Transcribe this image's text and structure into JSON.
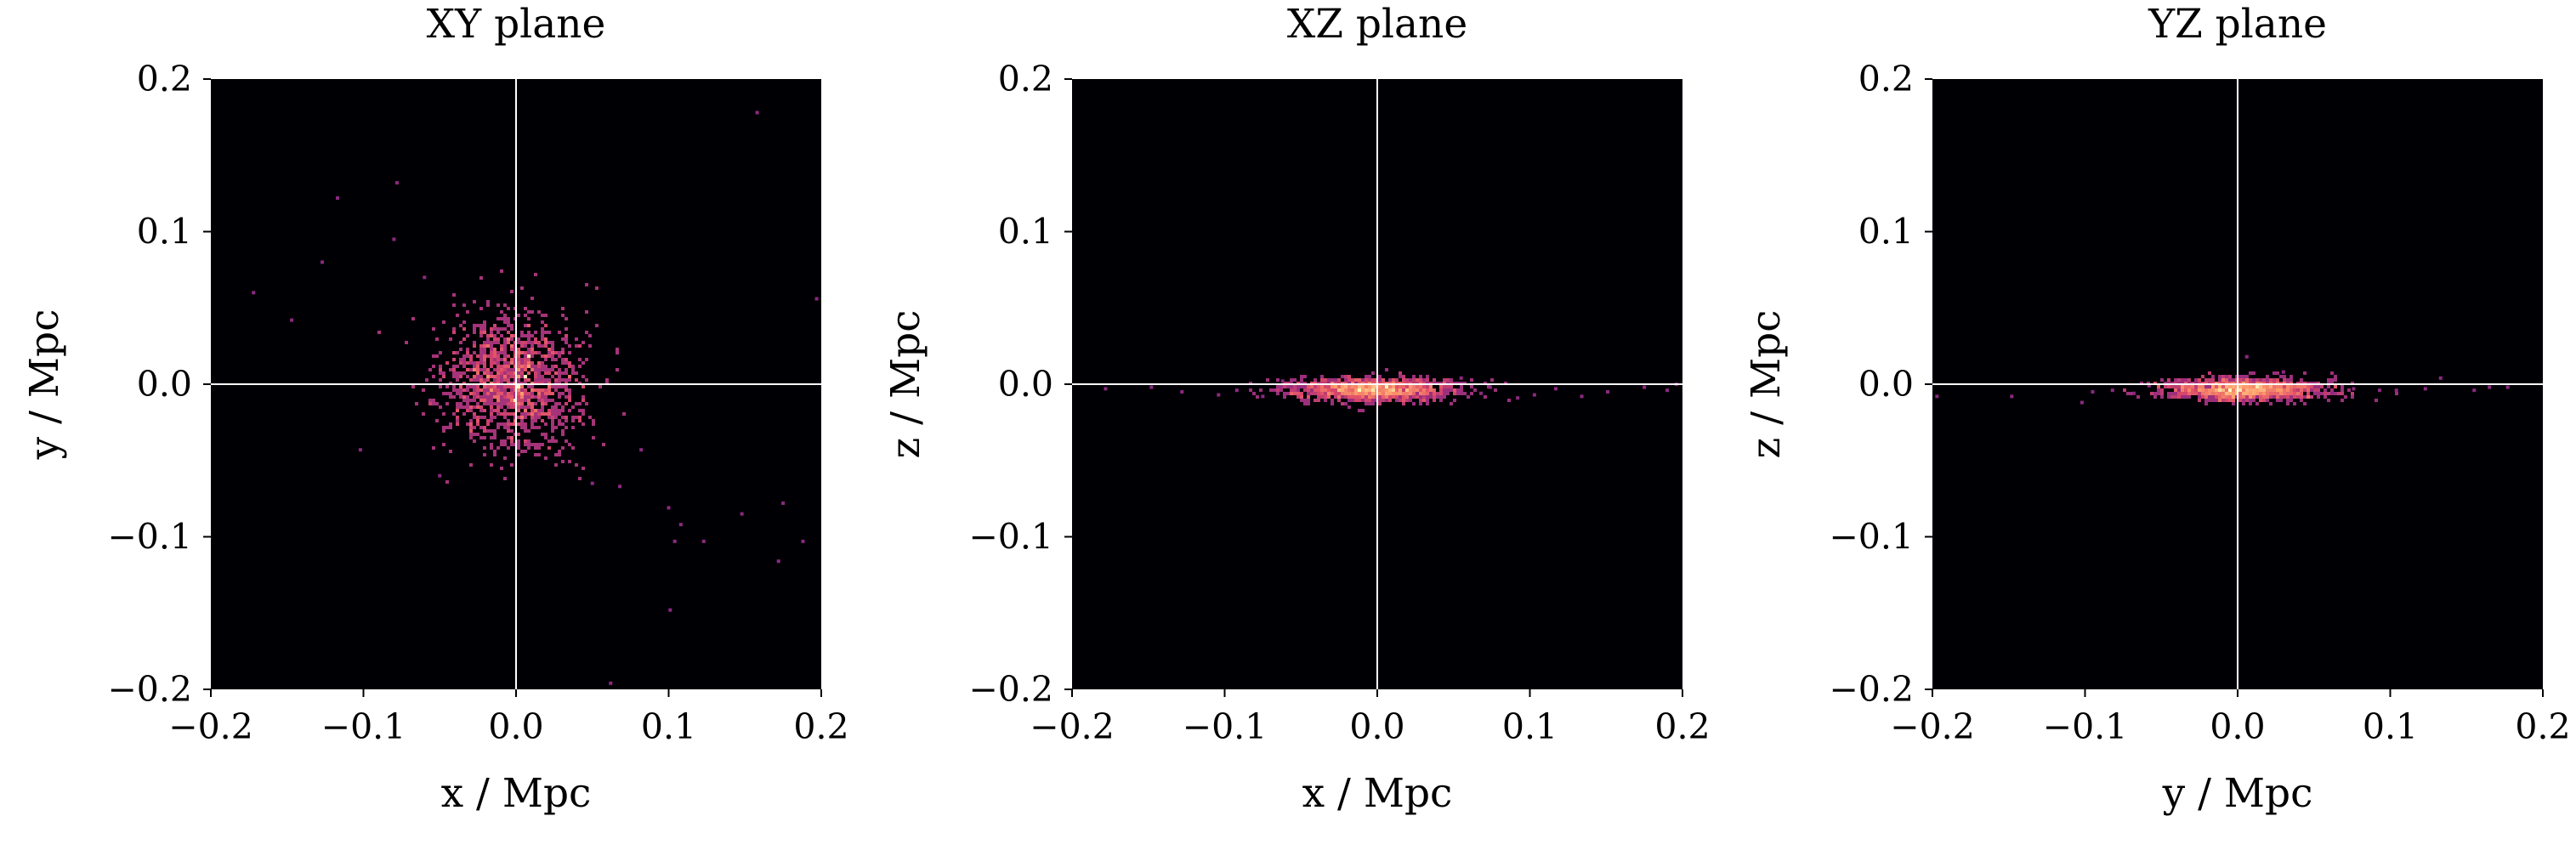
{
  "colors": {
    "background": "#000004",
    "crosshair": "#ffffff",
    "colormap": [
      "#3b0f70",
      "#8c2981",
      "#de4968",
      "#fe9f6d",
      "#fcfdbf"
    ]
  },
  "colormap_name": "magma",
  "chart_data": [
    {
      "type": "heatmap",
      "title": "XY plane",
      "xlabel": "x / Mpc",
      "ylabel": "y / Mpc",
      "xlim": [
        -0.2,
        0.2
      ],
      "ylim": [
        -0.2,
        0.2
      ],
      "xticks": [
        "−0.2",
        "−0.1",
        "0.0",
        "0.1",
        "0.2"
      ],
      "yticks": [
        "−0.2",
        "−0.1",
        "0.0",
        "0.1",
        "0.2"
      ],
      "grid": false,
      "crosshair_at": [
        0,
        0
      ],
      "core": {
        "center": [
          -0.003,
          0.002
        ],
        "sigma": [
          0.022,
          0.022
        ],
        "count": 1400
      },
      "bright_spots": [
        [
          0.0,
          0.0
        ],
        [
          0.008,
          0.02
        ],
        [
          -0.002,
          -0.01
        ],
        [
          0.005,
          0.006
        ]
      ],
      "outliers": [
        [
          0.158,
          0.178
        ],
        [
          -0.078,
          0.132
        ],
        [
          -0.117,
          0.122
        ],
        [
          -0.08,
          0.095
        ],
        [
          -0.127,
          0.08
        ],
        [
          -0.172,
          0.06
        ],
        [
          -0.147,
          0.042
        ],
        [
          0.197,
          0.056
        ],
        [
          -0.102,
          -0.043
        ],
        [
          0.082,
          -0.043
        ],
        [
          0.068,
          -0.067
        ],
        [
          0.1,
          -0.081
        ],
        [
          0.108,
          -0.092
        ],
        [
          0.123,
          -0.103
        ],
        [
          0.104,
          -0.103
        ],
        [
          0.148,
          -0.085
        ],
        [
          0.175,
          -0.078
        ],
        [
          0.188,
          -0.103
        ],
        [
          0.172,
          -0.116
        ],
        [
          0.101,
          -0.148
        ],
        [
          0.062,
          -0.196
        ],
        [
          -0.05,
          -0.06
        ],
        [
          0.05,
          -0.065
        ],
        [
          -0.06,
          0.07
        ]
      ]
    },
    {
      "type": "heatmap",
      "title": "XZ plane",
      "xlabel": "x / Mpc",
      "ylabel": "z / Mpc",
      "xlim": [
        -0.2,
        0.2
      ],
      "ylim": [
        -0.2,
        0.2
      ],
      "xticks": [
        "−0.2",
        "−0.1",
        "0.0",
        "0.1",
        "0.2"
      ],
      "yticks": [
        "−0.2",
        "−0.1",
        "0.0",
        "0.1",
        "0.2"
      ],
      "grid": false,
      "crosshair_at": [
        0,
        0
      ],
      "core": {
        "center": [
          -0.003,
          -0.003
        ],
        "sigma": [
          0.026,
          0.0035
        ],
        "count": 1400
      },
      "bright_spots": [
        [
          -0.004,
          -0.003
        ],
        [
          0.005,
          -0.002
        ],
        [
          -0.012,
          -0.003
        ]
      ],
      "outliers": [
        [
          -0.178,
          -0.003
        ],
        [
          -0.148,
          -0.002
        ],
        [
          -0.128,
          -0.005
        ],
        [
          -0.104,
          -0.007
        ],
        [
          -0.092,
          -0.004
        ],
        [
          -0.075,
          -0.008
        ],
        [
          0.068,
          -0.006
        ],
        [
          0.074,
          -0.002
        ],
        [
          0.092,
          -0.009
        ],
        [
          0.103,
          -0.007
        ],
        [
          0.117,
          -0.003
        ],
        [
          0.134,
          -0.008
        ],
        [
          0.151,
          -0.005
        ],
        [
          0.175,
          -0.002
        ],
        [
          0.19,
          -0.004
        ],
        [
          0.196,
          0.0
        ],
        [
          0.055,
          0.004
        ],
        [
          -0.062,
          0.002
        ]
      ]
    },
    {
      "type": "heatmap",
      "title": "YZ plane",
      "xlabel": "y / Mpc",
      "ylabel": "z / Mpc",
      "xlim": [
        -0.2,
        0.2
      ],
      "ylim": [
        -0.2,
        0.2
      ],
      "xticks": [
        "−0.2",
        "−0.1",
        "0.0",
        "0.1",
        "0.2"
      ],
      "yticks": [
        "−0.2",
        "−0.1",
        "0.0",
        "0.1",
        "0.2"
      ],
      "grid": false,
      "crosshair_at": [
        0,
        0
      ],
      "core": {
        "center": [
          0.004,
          -0.003
        ],
        "sigma": [
          0.025,
          0.0035
        ],
        "count": 1400
      },
      "bright_spots": [
        [
          0.0,
          -0.003
        ],
        [
          0.012,
          -0.002
        ],
        [
          -0.006,
          -0.003
        ]
      ],
      "outliers": [
        [
          -0.197,
          -0.008
        ],
        [
          -0.148,
          -0.008
        ],
        [
          -0.102,
          -0.012
        ],
        [
          -0.095,
          -0.005
        ],
        [
          -0.082,
          -0.004
        ],
        [
          -0.068,
          -0.006
        ],
        [
          -0.058,
          -0.001
        ],
        [
          0.062,
          -0.006
        ],
        [
          0.076,
          -0.003
        ],
        [
          0.093,
          -0.004
        ],
        [
          0.104,
          -0.004
        ],
        [
          0.123,
          -0.003
        ],
        [
          0.133,
          0.004
        ],
        [
          0.155,
          -0.004
        ],
        [
          0.165,
          -0.002
        ],
        [
          0.177,
          -0.002
        ],
        [
          0.006,
          0.018
        ],
        [
          0.03,
          0.008
        ]
      ]
    }
  ]
}
